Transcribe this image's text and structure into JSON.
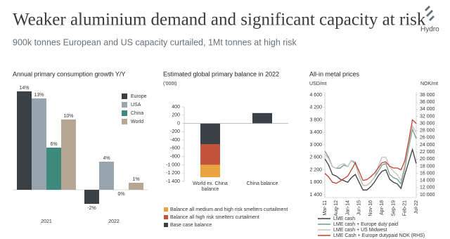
{
  "title": "Weaker aluminium demand and significant capacity at risk",
  "subtitle": "900k tonnes European and US capacity curtailed, 1Mt tonnes at high risk",
  "logo": "Hydro",
  "chart_data": [
    {
      "type": "bar",
      "title": "Annual primary consumption growth Y/Y",
      "categories": [
        "2021",
        "2022"
      ],
      "series": [
        {
          "name": "Europe",
          "color": "#3b4045",
          "values": [
            14,
            -2
          ],
          "value_labels": [
            "14%",
            "-2%"
          ]
        },
        {
          "name": "USA",
          "color": "#99a5ae",
          "values": [
            13,
            4
          ],
          "value_labels": [
            "13%",
            "4%"
          ]
        },
        {
          "name": "China",
          "color": "#3d8a7d",
          "values": [
            6,
            0
          ],
          "value_labels": [
            "6%",
            "0%"
          ]
        },
        {
          "name": "World",
          "color": "#b6a794",
          "values": [
            10,
            1
          ],
          "value_labels": [
            "10%",
            "1%"
          ]
        }
      ],
      "ylim": [
        -3,
        14.5
      ]
    },
    {
      "type": "stacked_bar",
      "title": "Estimated global primary balance in 2022",
      "subtitle": "('000t)",
      "categories": [
        "World ex. China balance",
        "China balance"
      ],
      "series": [
        {
          "name": "Base case balance",
          "color": "#3b4045",
          "values": [
            -500,
            250
          ]
        },
        {
          "name": "Balance all high risk smelters curtailment",
          "color": "#c4533b",
          "values": [
            -500,
            null
          ]
        },
        {
          "name": "Balance all medium and high risk smelters curtailment",
          "color": "#e9a33f",
          "values": [
            -300,
            null
          ]
        }
      ],
      "ylim": [
        -1400,
        400
      ],
      "yticks": [
        400,
        200,
        0,
        -200,
        -400,
        -600,
        -800,
        {
          "value": -1000,
          "label": "-1 000"
        },
        {
          "value": -1200,
          "label": "-1 200"
        },
        {
          "value": -1400,
          "label": "-1 400"
        }
      ]
    },
    {
      "type": "line",
      "title": "All-in metal prices",
      "ylabel": "USD/mt",
      "y2label": "NOK/mt",
      "categories": [
        "Mar-11",
        null,
        null,
        "Aug-12",
        null,
        null,
        "Jan-14",
        null,
        null,
        "Jun-15",
        null,
        null,
        "Nov-16",
        null,
        null,
        "Apr-18",
        null,
        null,
        "Sep-19",
        null,
        null,
        "Feb-21",
        null,
        null,
        "Jul-22"
      ],
      "series": [
        {
          "name": "LME cash",
          "color": "#3d3d3d",
          "values": [
            2550,
            2350,
            2050,
            2000,
            1900,
            1850,
            1800,
            1950,
            2050,
            1800,
            1550,
            1550,
            1650,
            1800,
            2000,
            2150,
            2200,
            1900,
            1800,
            1750,
            1600,
            2050,
            2450,
            2850,
            2400
          ]
        },
        {
          "name": "LME cash + Europe duty paid",
          "color": "#6f9a93",
          "values": [
            2800,
            2600,
            2300,
            2250,
            2250,
            2350,
            2300,
            2500,
            2400,
            2000,
            1700,
            1700,
            1800,
            1950,
            2150,
            2350,
            2400,
            2050,
            1950,
            1900,
            1750,
            2250,
            2900,
            3500,
            3200
          ]
        },
        {
          "name": "LME cash + US Midwest",
          "color": "#c9c1bc",
          "values": [
            2700,
            2550,
            2300,
            2250,
            2350,
            2400,
            2300,
            2500,
            2450,
            2000,
            1700,
            1700,
            1800,
            1950,
            2300,
            2600,
            2600,
            2300,
            2150,
            2050,
            1850,
            2350,
            3000,
            3600,
            3400
          ]
        },
        {
          "name": "LME Cash + Europe dutypaid NOK (RHS)",
          "color": "#c0442e",
          "axis": "y2",
          "values": [
            16000,
            15000,
            13500,
            13200,
            13800,
            14500,
            15200,
            17000,
            19000,
            16500,
            14000,
            14200,
            15000,
            16000,
            17500,
            19000,
            19200,
            18000,
            17500,
            17500,
            17000,
            19500,
            25000,
            31000,
            30000
          ]
        }
      ],
      "ylim": [
        1400,
        4600
      ],
      "yticks": [
        {
          "value": 4600,
          "label": "4 600"
        },
        {
          "value": 4200,
          "label": "4 200"
        },
        {
          "value": 3800,
          "label": "3 800"
        },
        {
          "value": 3400,
          "label": "3 400"
        },
        {
          "value": 3000,
          "label": "3 000"
        },
        {
          "value": 2600,
          "label": "2 600"
        },
        {
          "value": 2200,
          "label": "2 200"
        },
        {
          "value": 1800,
          "label": "1 800"
        },
        {
          "value": 1400,
          "label": "1 400"
        }
      ],
      "y2lim": [
        10000,
        38000
      ],
      "y2ticks": [
        {
          "value": 38000,
          "label": "38 000"
        },
        {
          "value": 36000,
          "label": "36 000"
        },
        {
          "value": 34000,
          "label": "34 000"
        },
        {
          "value": 32000,
          "label": "32 000"
        },
        {
          "value": 30000,
          "label": "30 000"
        },
        {
          "value": 28000,
          "label": "28 000"
        },
        {
          "value": 26000,
          "label": "26 000"
        },
        {
          "value": 24000,
          "label": "24 000"
        },
        {
          "value": 22000,
          "label": "22 000"
        },
        {
          "value": 20000,
          "label": "20 000"
        },
        {
          "value": 18000,
          "label": "18 000"
        },
        {
          "value": 16000,
          "label": "16 000"
        },
        {
          "value": 14000,
          "label": "14 000"
        },
        {
          "value": 12000,
          "label": "12 000"
        },
        {
          "value": 10000,
          "label": "10 000"
        }
      ]
    }
  ]
}
